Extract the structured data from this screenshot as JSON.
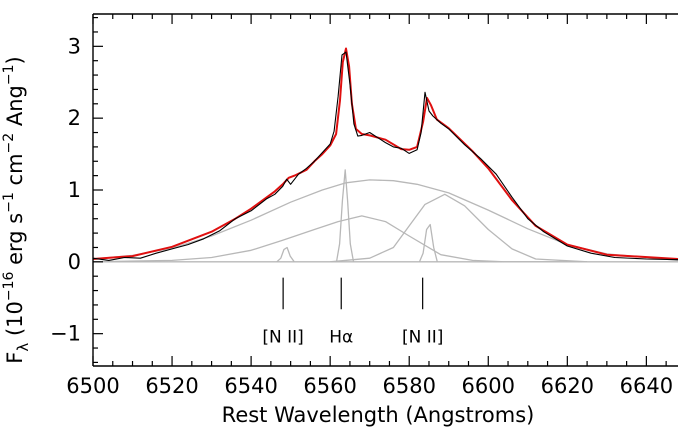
{
  "chart_data": {
    "type": "line",
    "xlabel": "Rest Wavelength (Angstroms)",
    "ylabel_parts": {
      "f": "F",
      "lambda": "λ",
      "open": " (10",
      "exp16": "−16",
      "erg": " erg s",
      "exp1a": "−1",
      "cm": " cm",
      "exp2": "−2",
      "ang": " Ang",
      "exp1b": "−1",
      "close": ")"
    },
    "xlim": [
      6500,
      6648
    ],
    "ylim": [
      -1.45,
      3.45
    ],
    "xticks": [
      6500,
      6520,
      6540,
      6560,
      6580,
      6600,
      6620,
      6640
    ],
    "yticks": [
      -1,
      0,
      1,
      2,
      3
    ],
    "grid": false,
    "colors": {
      "observed": "#000000",
      "fit": "#e01010",
      "components": "#b8b8b8"
    },
    "annotations": [
      {
        "label": "[N II]",
        "x": 6548.1
      },
      {
        "label": "Hα",
        "x": 6562.8
      },
      {
        "label": "[N II]",
        "x": 6583.4
      }
    ],
    "series": [
      {
        "role": "broad-component",
        "x": [
          6500,
          6510,
          6520,
          6530,
          6540,
          6550,
          6558,
          6564,
          6570,
          6576,
          6582,
          6590,
          6600,
          6610,
          6620,
          6630,
          6648
        ],
        "y": [
          0.04,
          0.09,
          0.19,
          0.36,
          0.58,
          0.83,
          1.0,
          1.1,
          1.14,
          1.13,
          1.08,
          0.96,
          0.72,
          0.46,
          0.24,
          0.11,
          0.02
        ]
      },
      {
        "role": "blue-shoulder-component",
        "x": [
          6500,
          6520,
          6530,
          6540,
          6548,
          6556,
          6562,
          6568,
          6574,
          6580,
          6588,
          6596,
          6604,
          6620
        ],
        "y": [
          0.0,
          0.02,
          0.06,
          0.16,
          0.3,
          0.45,
          0.56,
          0.64,
          0.56,
          0.36,
          0.1,
          0.02,
          0.0,
          0.0
        ]
      },
      {
        "role": "red-shoulder-component",
        "x": [
          6560,
          6570,
          6576,
          6580,
          6584,
          6589,
          6594,
          6600,
          6606,
          6612,
          6625
        ],
        "y": [
          0.0,
          0.05,
          0.2,
          0.5,
          0.8,
          0.94,
          0.78,
          0.45,
          0.18,
          0.04,
          0.0
        ]
      },
      {
        "role": "narrow-NII-6548",
        "x": [
          6546.5,
          6547.5,
          6548.3,
          6549.1,
          6549.9,
          6550.9
        ],
        "y": [
          0.0,
          0.05,
          0.17,
          0.2,
          0.08,
          0.0
        ]
      },
      {
        "role": "narrow-Halpha",
        "x": [
          6561.6,
          6562.4,
          6563.1,
          6563.8,
          6564.4,
          6565.1,
          6565.9
        ],
        "y": [
          0.0,
          0.25,
          0.85,
          1.28,
          0.85,
          0.25,
          0.0
        ]
      },
      {
        "role": "narrow-NII-6584",
        "x": [
          6582.6,
          6583.5,
          6584.4,
          6585.3,
          6586.2,
          6587.1
        ],
        "y": [
          0.0,
          0.12,
          0.45,
          0.52,
          0.2,
          0.0
        ]
      },
      {
        "role": "total-fit",
        "x": [
          6500,
          6510,
          6520,
          6530,
          6536,
          6540,
          6544,
          6546,
          6548,
          6549.5,
          6551,
          6554,
          6556,
          6558,
          6560,
          6561.5,
          6562.5,
          6563.2,
          6564,
          6564.8,
          6565.5,
          6566.5,
          6568,
          6570,
          6574,
          6578,
          6580,
          6582,
          6583.5,
          6584.5,
          6585.5,
          6587,
          6590,
          6596,
          6600,
          6606,
          6612,
          6620,
          6630,
          6648
        ],
        "y": [
          0.04,
          0.08,
          0.21,
          0.42,
          0.6,
          0.74,
          0.9,
          0.98,
          1.08,
          1.17,
          1.2,
          1.28,
          1.4,
          1.5,
          1.62,
          1.78,
          2.25,
          2.78,
          2.97,
          2.72,
          2.2,
          1.85,
          1.78,
          1.76,
          1.7,
          1.57,
          1.56,
          1.6,
          1.95,
          2.28,
          2.18,
          1.98,
          1.86,
          1.54,
          1.3,
          0.86,
          0.5,
          0.24,
          0.1,
          0.04
        ]
      },
      {
        "role": "observed-spectrum",
        "x": [
          6500,
          6504,
          6508,
          6512,
          6516,
          6520,
          6524,
          6528,
          6532,
          6536,
          6540,
          6544,
          6546,
          6548,
          6549,
          6550,
          6552,
          6554,
          6556,
          6558,
          6560,
          6561,
          6562,
          6563,
          6564,
          6565,
          6566,
          6567,
          6568,
          6570,
          6572,
          6574,
          6576,
          6578,
          6580,
          6582,
          6583,
          6584,
          6585,
          6586,
          6588,
          6590,
          6594,
          6598,
          6602,
          6606,
          6610,
          6614,
          6620,
          6626,
          6632,
          6640,
          6648
        ],
        "y": [
          0.05,
          0.02,
          0.06,
          0.05,
          0.12,
          0.18,
          0.24,
          0.32,
          0.43,
          0.6,
          0.71,
          0.88,
          0.94,
          1.05,
          1.15,
          1.08,
          1.22,
          1.3,
          1.4,
          1.52,
          1.64,
          1.82,
          2.3,
          2.88,
          2.92,
          2.48,
          1.92,
          1.75,
          1.76,
          1.8,
          1.73,
          1.66,
          1.6,
          1.58,
          1.51,
          1.56,
          1.8,
          2.36,
          2.1,
          2.03,
          1.93,
          1.85,
          1.63,
          1.44,
          1.22,
          0.9,
          0.6,
          0.42,
          0.22,
          0.12,
          0.06,
          0.04,
          0.03
        ]
      }
    ]
  }
}
